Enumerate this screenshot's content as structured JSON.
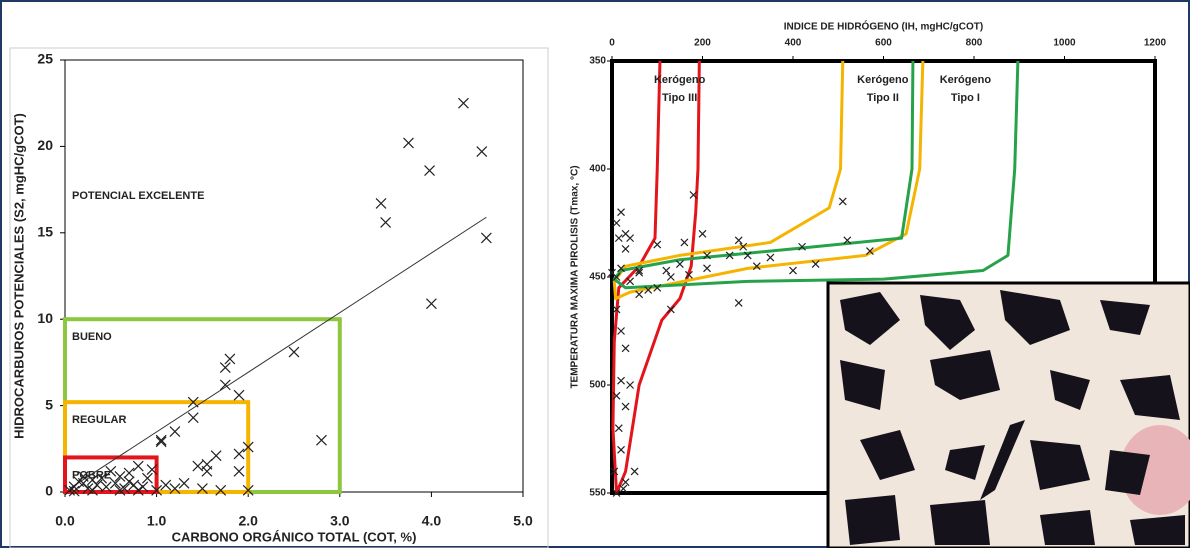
{
  "chart_data": [
    {
      "type": "scatter",
      "x_label": "CARBONO ORGÁNICO TOTAL (COT, %)",
      "y_label": "HIDROCARBUROS POTENCIALES (S2, mgHC/gCOT)",
      "xlim": [
        0,
        5
      ],
      "ylim": [
        0,
        25
      ],
      "xticks": [
        {
          "value": 0,
          "label": "0.0"
        },
        {
          "value": 1,
          "label": "1.0"
        },
        {
          "value": 2,
          "label": "2.0"
        },
        {
          "value": 3,
          "label": "3.0"
        },
        {
          "value": 4,
          "label": "4.0"
        },
        {
          "value": 5,
          "label": "5.0"
        }
      ],
      "yticks": [
        0,
        5,
        10,
        15,
        20,
        25
      ],
      "color": "#222222",
      "x": [
        4.35,
        3.75,
        4.55,
        3.98,
        3.45,
        3.5,
        4.6,
        4.0,
        2.5,
        1.8,
        1.75,
        1.75,
        1.9,
        1.4,
        1.4,
        1.2,
        1.05,
        1.05,
        2.8,
        2.0,
        1.9,
        1.65,
        1.55,
        1.45,
        1.9,
        1.55,
        0.8,
        0.95,
        0.5,
        0.3,
        0.2,
        0.4,
        0.6,
        0.7,
        0.9,
        0.1,
        0.15,
        0.25,
        0.35,
        0.45,
        0.55,
        0.65,
        0.75,
        0.85,
        1.1,
        1.2,
        1.3,
        0.05,
        0.1,
        0.6,
        1.0,
        1.5,
        1.7,
        2.0,
        0.3,
        0.8,
        0.2,
        0.7
      ],
      "values": [
        22.5,
        20.2,
        19.7,
        18.6,
        16.7,
        15.6,
        14.7,
        10.9,
        8.1,
        7.7,
        7.2,
        6.2,
        5.6,
        5.2,
        4.3,
        3.5,
        3.0,
        2.9,
        3.0,
        2.6,
        2.2,
        2.1,
        1.2,
        1.5,
        1.2,
        1.6,
        1.5,
        1.3,
        1.2,
        0.7,
        0.5,
        0.8,
        0.9,
        0.6,
        0.8,
        0.3,
        0.6,
        0.2,
        0.4,
        0.3,
        0.5,
        0.2,
        0.4,
        0.3,
        0.4,
        0.2,
        0.5,
        0.1,
        0.05,
        0.1,
        0.1,
        0.2,
        0.1,
        0.1,
        0.1,
        0.1,
        0.9,
        1.1
      ],
      "trend": {
        "x": [
          0.05,
          4.6
        ],
        "y": [
          0.2,
          15.9
        ]
      },
      "zones": [
        {
          "name": "BUENO",
          "color": "#8dc63f",
          "xmax": 3,
          "ymax": 10
        },
        {
          "name": "REGULAR",
          "color": "#f5b400",
          "xmax": 2,
          "ymax": 5.2
        },
        {
          "name": "POBRE",
          "color": "#e4141b",
          "xmax": 1,
          "ymax": 2
        }
      ],
      "annotation": "POTENCIAL EXCELENTE"
    },
    {
      "type": "scatter",
      "x_label": "INDICE DE HIDRÓGENO (IH, mgHC/gCOT)",
      "y_label": "TEMPERATURA MAXIMA PIROLISIS (Tmax, °C)",
      "xlim": [
        0,
        1200
      ],
      "ylim": [
        350,
        550
      ],
      "y_inverted": true,
      "x_axis_position": "top",
      "xticks": [
        0,
        200,
        400,
        600,
        800,
        1000,
        1200
      ],
      "yticks": [
        350,
        400,
        450,
        500,
        550
      ],
      "color": "#222222",
      "x": [
        180,
        510,
        20,
        10,
        15,
        40,
        30,
        100,
        160,
        200,
        280,
        290,
        260,
        300,
        350,
        420,
        520,
        570,
        450,
        400,
        320,
        210,
        150,
        120,
        60,
        20,
        10,
        40,
        80,
        60,
        100,
        130,
        170,
        210,
        280,
        130,
        10,
        20,
        30,
        20,
        40,
        10,
        30,
        15,
        20,
        5,
        30,
        10,
        25,
        50,
        30,
        60,
        0
      ],
      "values": [
        412,
        415,
        420,
        425,
        432,
        432,
        437,
        435,
        434,
        430,
        433,
        436,
        440,
        440,
        441,
        436,
        433,
        438,
        444,
        447,
        445,
        440,
        444,
        447,
        448,
        446,
        450,
        452,
        456,
        458,
        455,
        450,
        449,
        446,
        462,
        465,
        465,
        475,
        483,
        498,
        500,
        505,
        510,
        520,
        530,
        540,
        545,
        550,
        548,
        540,
        430,
        447,
        448
      ],
      "envelopes": [
        {
          "label_lines": [
            "Kerógeno",
            "Tipo III"
          ],
          "color": "#e4141b",
          "x": [
            106,
            100,
            95,
            60,
            15,
            5,
            2,
            10,
            30,
            60,
            110,
            150,
            175,
            185,
            190,
            193
          ],
          "y": [
            350,
            400,
            432,
            445,
            455,
            480,
            520,
            550,
            540,
            500,
            470,
            460,
            445,
            420,
            400,
            350
          ]
        },
        {
          "label_lines": [
            "Kerógeno",
            "Tipo II"
          ],
          "color": "#f5b400",
          "x": [
            510,
            505,
            480,
            350,
            150,
            30,
            5,
            8,
            40,
            300,
            560,
            650,
            680,
            687
          ],
          "y": [
            350,
            400,
            418,
            434,
            440,
            445,
            452,
            460,
            457,
            446,
            440,
            430,
            400,
            350
          ]
        },
        {
          "label_lines": [
            "Kerógeno",
            "Tipo I"
          ],
          "color": "#27a24a",
          "x": [
            665,
            663,
            640,
            400,
            150,
            20,
            5,
            30,
            300,
            600,
            820,
            875,
            890,
            897
          ],
          "y": [
            350,
            400,
            432,
            437,
            442,
            447,
            451,
            455,
            452,
            451,
            447,
            440,
            400,
            350
          ]
        }
      ]
    }
  ]
}
